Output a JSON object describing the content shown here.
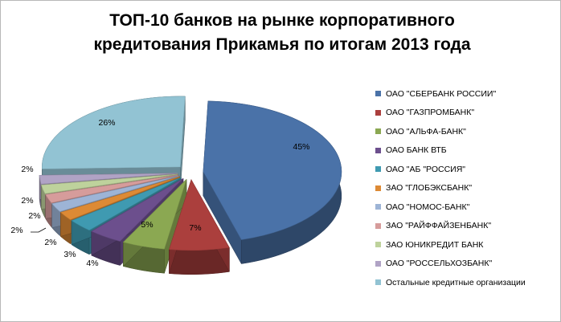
{
  "chart_data": {
    "type": "pie",
    "style": "3d-exploded",
    "title": [
      "ТОП-10 банков на рынке корпоративного",
      "кредитования Прикамья по итогам 2013 года"
    ],
    "legend_position": "right",
    "series": [
      {
        "name": "ОАО \"СБЕРБАНК  РОССИИ\"",
        "value": 45,
        "label": "45%",
        "color": "#4a72a8"
      },
      {
        "name": "ОАО \"ГАЗПРОМБАНК\"",
        "value": 7,
        "label": "7%",
        "color": "#ab3f3d"
      },
      {
        "name": "ОАО \"АЛЬФА-БАНК\"",
        "value": 5,
        "label": "5%",
        "color": "#8ba852"
      },
      {
        "name": "ОАО БАНК ВТБ",
        "value": 4,
        "label": "4%",
        "color": "#6c4f8d"
      },
      {
        "name": "ОАО \"АБ  \"РОССИЯ\"",
        "value": 3,
        "label": "3%",
        "color": "#3f9ab1"
      },
      {
        "name": "ЗАО  \"ГЛОБЭКСБАНК\"",
        "value": 2,
        "label": "2%",
        "color": "#dd8a35"
      },
      {
        "name": "ОАО  \"НОМОС-БАНК\"",
        "value": 2,
        "label": "2%",
        "color": "#9db4d6"
      },
      {
        "name": "ЗАО  \"РАЙФФАЙЗЕНБАНК\"",
        "value": 2,
        "label": "2%",
        "color": "#d69c9b"
      },
      {
        "name": "ЗАО ЮНИКРЕДИТ  БАНК",
        "value": 2,
        "label": "2%",
        "color": "#bed29c"
      },
      {
        "name": "ОАО \"РОССЕЛЬХОЗБАНК\"",
        "value": 2,
        "label": "2%",
        "color": "#b0a3c5"
      },
      {
        "name": "Остальные кредитные организации",
        "value": 26,
        "label": "26%",
        "color": "#92c3d3"
      }
    ]
  }
}
